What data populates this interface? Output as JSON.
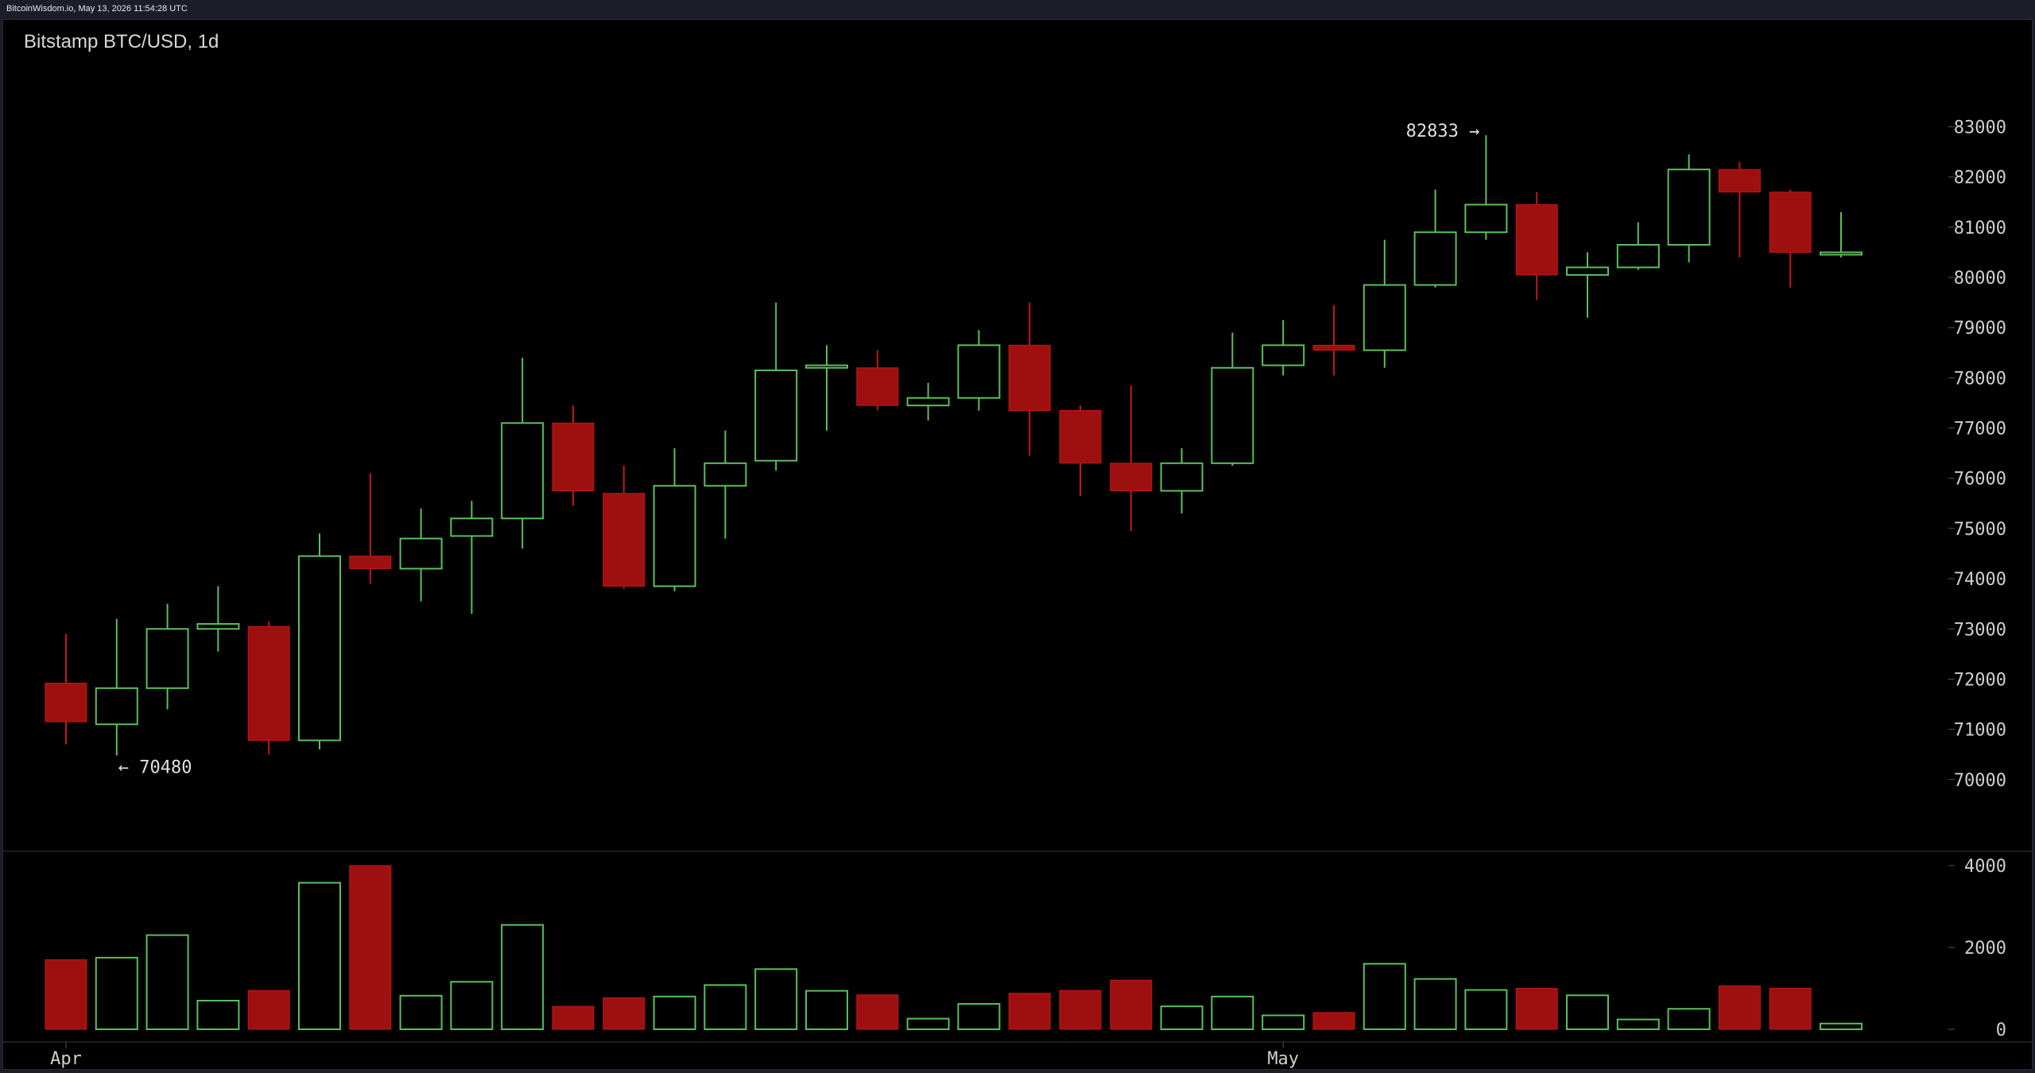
{
  "header": {
    "text": "BitcoinWisdom.io, May 13, 2026 11:54:28 UTC"
  },
  "colors": {
    "up": "#5cbf5c",
    "down": "#9e1010",
    "down_stroke": "#c01818",
    "grid": "#2a2a2a",
    "background": "#000000",
    "tick": "#cfcfcf"
  },
  "chart_data": {
    "type": "candlestick",
    "title": "Bitstamp BTC/USD, 1d",
    "price_ylim": [
      69300,
      83800
    ],
    "price_ticks": [
      83000,
      82000,
      81000,
      80000,
      79000,
      78000,
      77000,
      76000,
      75000,
      74000,
      73000,
      72000,
      71000,
      70000
    ],
    "volume_ylim": [
      0,
      4000
    ],
    "volume_ticks": [
      4000,
      2000,
      0
    ],
    "x_ticks": [
      {
        "label": "Apr",
        "index": 0
      },
      {
        "label": "May",
        "index": 24
      }
    ],
    "annotations": [
      {
        "text": "← 70480",
        "index": 1,
        "price": 70480,
        "side": "right"
      },
      {
        "text": "82833 →",
        "index": 28,
        "price": 82833,
        "side": "left"
      }
    ],
    "candles": [
      {
        "o": 71920,
        "h": 72900,
        "l": 70700,
        "c": 71150,
        "v": 1700
      },
      {
        "o": 71100,
        "h": 73200,
        "l": 70480,
        "c": 71820,
        "v": 1750
      },
      {
        "o": 71820,
        "h": 73500,
        "l": 71400,
        "c": 73000,
        "v": 2300
      },
      {
        "o": 73000,
        "h": 73850,
        "l": 72550,
        "c": 73100,
        "v": 700
      },
      {
        "o": 73050,
        "h": 73150,
        "l": 70500,
        "c": 70780,
        "v": 950
      },
      {
        "o": 70780,
        "h": 74900,
        "l": 70600,
        "c": 74450,
        "v": 3580
      },
      {
        "o": 74450,
        "h": 76100,
        "l": 73900,
        "c": 74200,
        "v": 4000
      },
      {
        "o": 74200,
        "h": 75400,
        "l": 73550,
        "c": 74800,
        "v": 820
      },
      {
        "o": 74850,
        "h": 75550,
        "l": 73300,
        "c": 75200,
        "v": 1160
      },
      {
        "o": 75200,
        "h": 78400,
        "l": 74600,
        "c": 77100,
        "v": 2550
      },
      {
        "o": 77100,
        "h": 77450,
        "l": 75450,
        "c": 75750,
        "v": 560
      },
      {
        "o": 75700,
        "h": 76250,
        "l": 73800,
        "c": 73850,
        "v": 770
      },
      {
        "o": 73850,
        "h": 76600,
        "l": 73750,
        "c": 75850,
        "v": 800
      },
      {
        "o": 75850,
        "h": 76950,
        "l": 74800,
        "c": 76300,
        "v": 1080
      },
      {
        "o": 76350,
        "h": 79500,
        "l": 76150,
        "c": 78150,
        "v": 1470
      },
      {
        "o": 78200,
        "h": 78650,
        "l": 76950,
        "c": 78250,
        "v": 940
      },
      {
        "o": 78200,
        "h": 78550,
        "l": 77350,
        "c": 77450,
        "v": 840
      },
      {
        "o": 77450,
        "h": 77900,
        "l": 77150,
        "c": 77600,
        "v": 260
      },
      {
        "o": 77600,
        "h": 78950,
        "l": 77350,
        "c": 78650,
        "v": 620
      },
      {
        "o": 78650,
        "h": 79500,
        "l": 76450,
        "c": 77350,
        "v": 880
      },
      {
        "o": 77350,
        "h": 77450,
        "l": 75650,
        "c": 76300,
        "v": 950
      },
      {
        "o": 76300,
        "h": 77850,
        "l": 74950,
        "c": 75750,
        "v": 1200
      },
      {
        "o": 75750,
        "h": 76600,
        "l": 75300,
        "c": 76300,
        "v": 560
      },
      {
        "o": 76300,
        "h": 78900,
        "l": 76250,
        "c": 78200,
        "v": 800
      },
      {
        "o": 78250,
        "h": 79150,
        "l": 78050,
        "c": 78650,
        "v": 340
      },
      {
        "o": 78650,
        "h": 79450,
        "l": 78050,
        "c": 78550,
        "v": 410
      },
      {
        "o": 78550,
        "h": 80750,
        "l": 78200,
        "c": 79850,
        "v": 1600
      },
      {
        "o": 79850,
        "h": 81750,
        "l": 79800,
        "c": 80900,
        "v": 1230
      },
      {
        "o": 80900,
        "h": 82833,
        "l": 80750,
        "c": 81450,
        "v": 960
      },
      {
        "o": 81450,
        "h": 81700,
        "l": 79550,
        "c": 80050,
        "v": 1000
      },
      {
        "o": 80050,
        "h": 80500,
        "l": 79200,
        "c": 80200,
        "v": 830
      },
      {
        "o": 80200,
        "h": 81100,
        "l": 80150,
        "c": 80650,
        "v": 240
      },
      {
        "o": 80650,
        "h": 82450,
        "l": 80300,
        "c": 82150,
        "v": 500
      },
      {
        "o": 82150,
        "h": 82300,
        "l": 80400,
        "c": 81700,
        "v": 1060
      },
      {
        "o": 81700,
        "h": 81750,
        "l": 79800,
        "c": 80500,
        "v": 1000
      },
      {
        "o": 80500,
        "h": 81300,
        "l": 80400,
        "c": 80500,
        "v": 140
      }
    ]
  }
}
